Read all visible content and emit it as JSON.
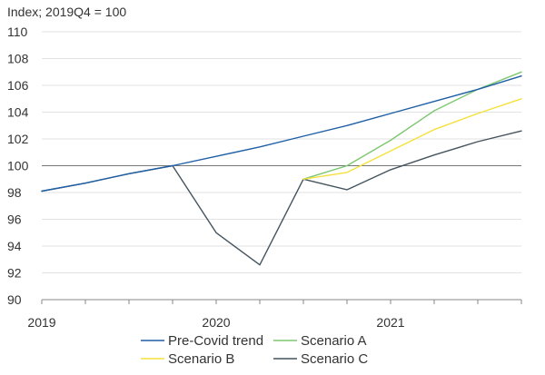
{
  "chart_data": {
    "type": "line",
    "unit_label": "Index; 2019Q4 = 100",
    "x_labels": [
      "2019",
      "2020",
      "2021"
    ],
    "quarters": [
      "2019Q1",
      "2019Q2",
      "2019Q3",
      "2019Q4",
      "2020Q1",
      "2020Q2",
      "2020Q3",
      "2020Q4",
      "2021Q1",
      "2021Q2",
      "2021Q3",
      "2021Q4"
    ],
    "xlim": [
      "2019Q1",
      "2021Q4"
    ],
    "ylim": [
      90,
      110
    ],
    "yticks": [
      90,
      92,
      94,
      96,
      98,
      100,
      102,
      104,
      106,
      108,
      110
    ],
    "reference_line": 100,
    "grid": true,
    "legend_position": "bottom",
    "series": [
      {
        "name": "Pre-Covid trend",
        "color": "#1f5fa6",
        "x": [
          "2019Q1",
          "2019Q2",
          "2019Q3",
          "2019Q4",
          "2020Q1",
          "2020Q2",
          "2020Q3",
          "2020Q4",
          "2021Q1",
          "2021Q2",
          "2021Q3",
          "2021Q4"
        ],
        "values": [
          98.1,
          98.7,
          99.4,
          100.0,
          100.7,
          101.4,
          102.2,
          103.0,
          103.9,
          104.8,
          105.7,
          106.7
        ]
      },
      {
        "name": "Scenario A",
        "color": "#7dc76f",
        "x": [
          "2020Q3",
          "2020Q4",
          "2021Q1",
          "2021Q2",
          "2021Q3",
          "2021Q4"
        ],
        "values": [
          99.0,
          100.0,
          101.9,
          104.1,
          105.7,
          107.0
        ]
      },
      {
        "name": "Scenario B",
        "color": "#f5e03c",
        "x": [
          "2020Q3",
          "2020Q4",
          "2021Q1",
          "2021Q2",
          "2021Q3",
          "2021Q4"
        ],
        "values": [
          99.0,
          99.5,
          101.1,
          102.7,
          103.9,
          105.0
        ]
      },
      {
        "name": "Scenario C",
        "color": "#44545f",
        "x": [
          "2019Q1",
          "2019Q2",
          "2019Q3",
          "2019Q4",
          "2020Q1",
          "2020Q2",
          "2020Q3",
          "2020Q4",
          "2021Q1",
          "2021Q2",
          "2021Q3",
          "2021Q4"
        ],
        "values": [
          98.1,
          98.7,
          99.4,
          100.0,
          95.0,
          92.6,
          99.0,
          98.2,
          99.7,
          100.8,
          101.8,
          102.6
        ]
      }
    ]
  }
}
